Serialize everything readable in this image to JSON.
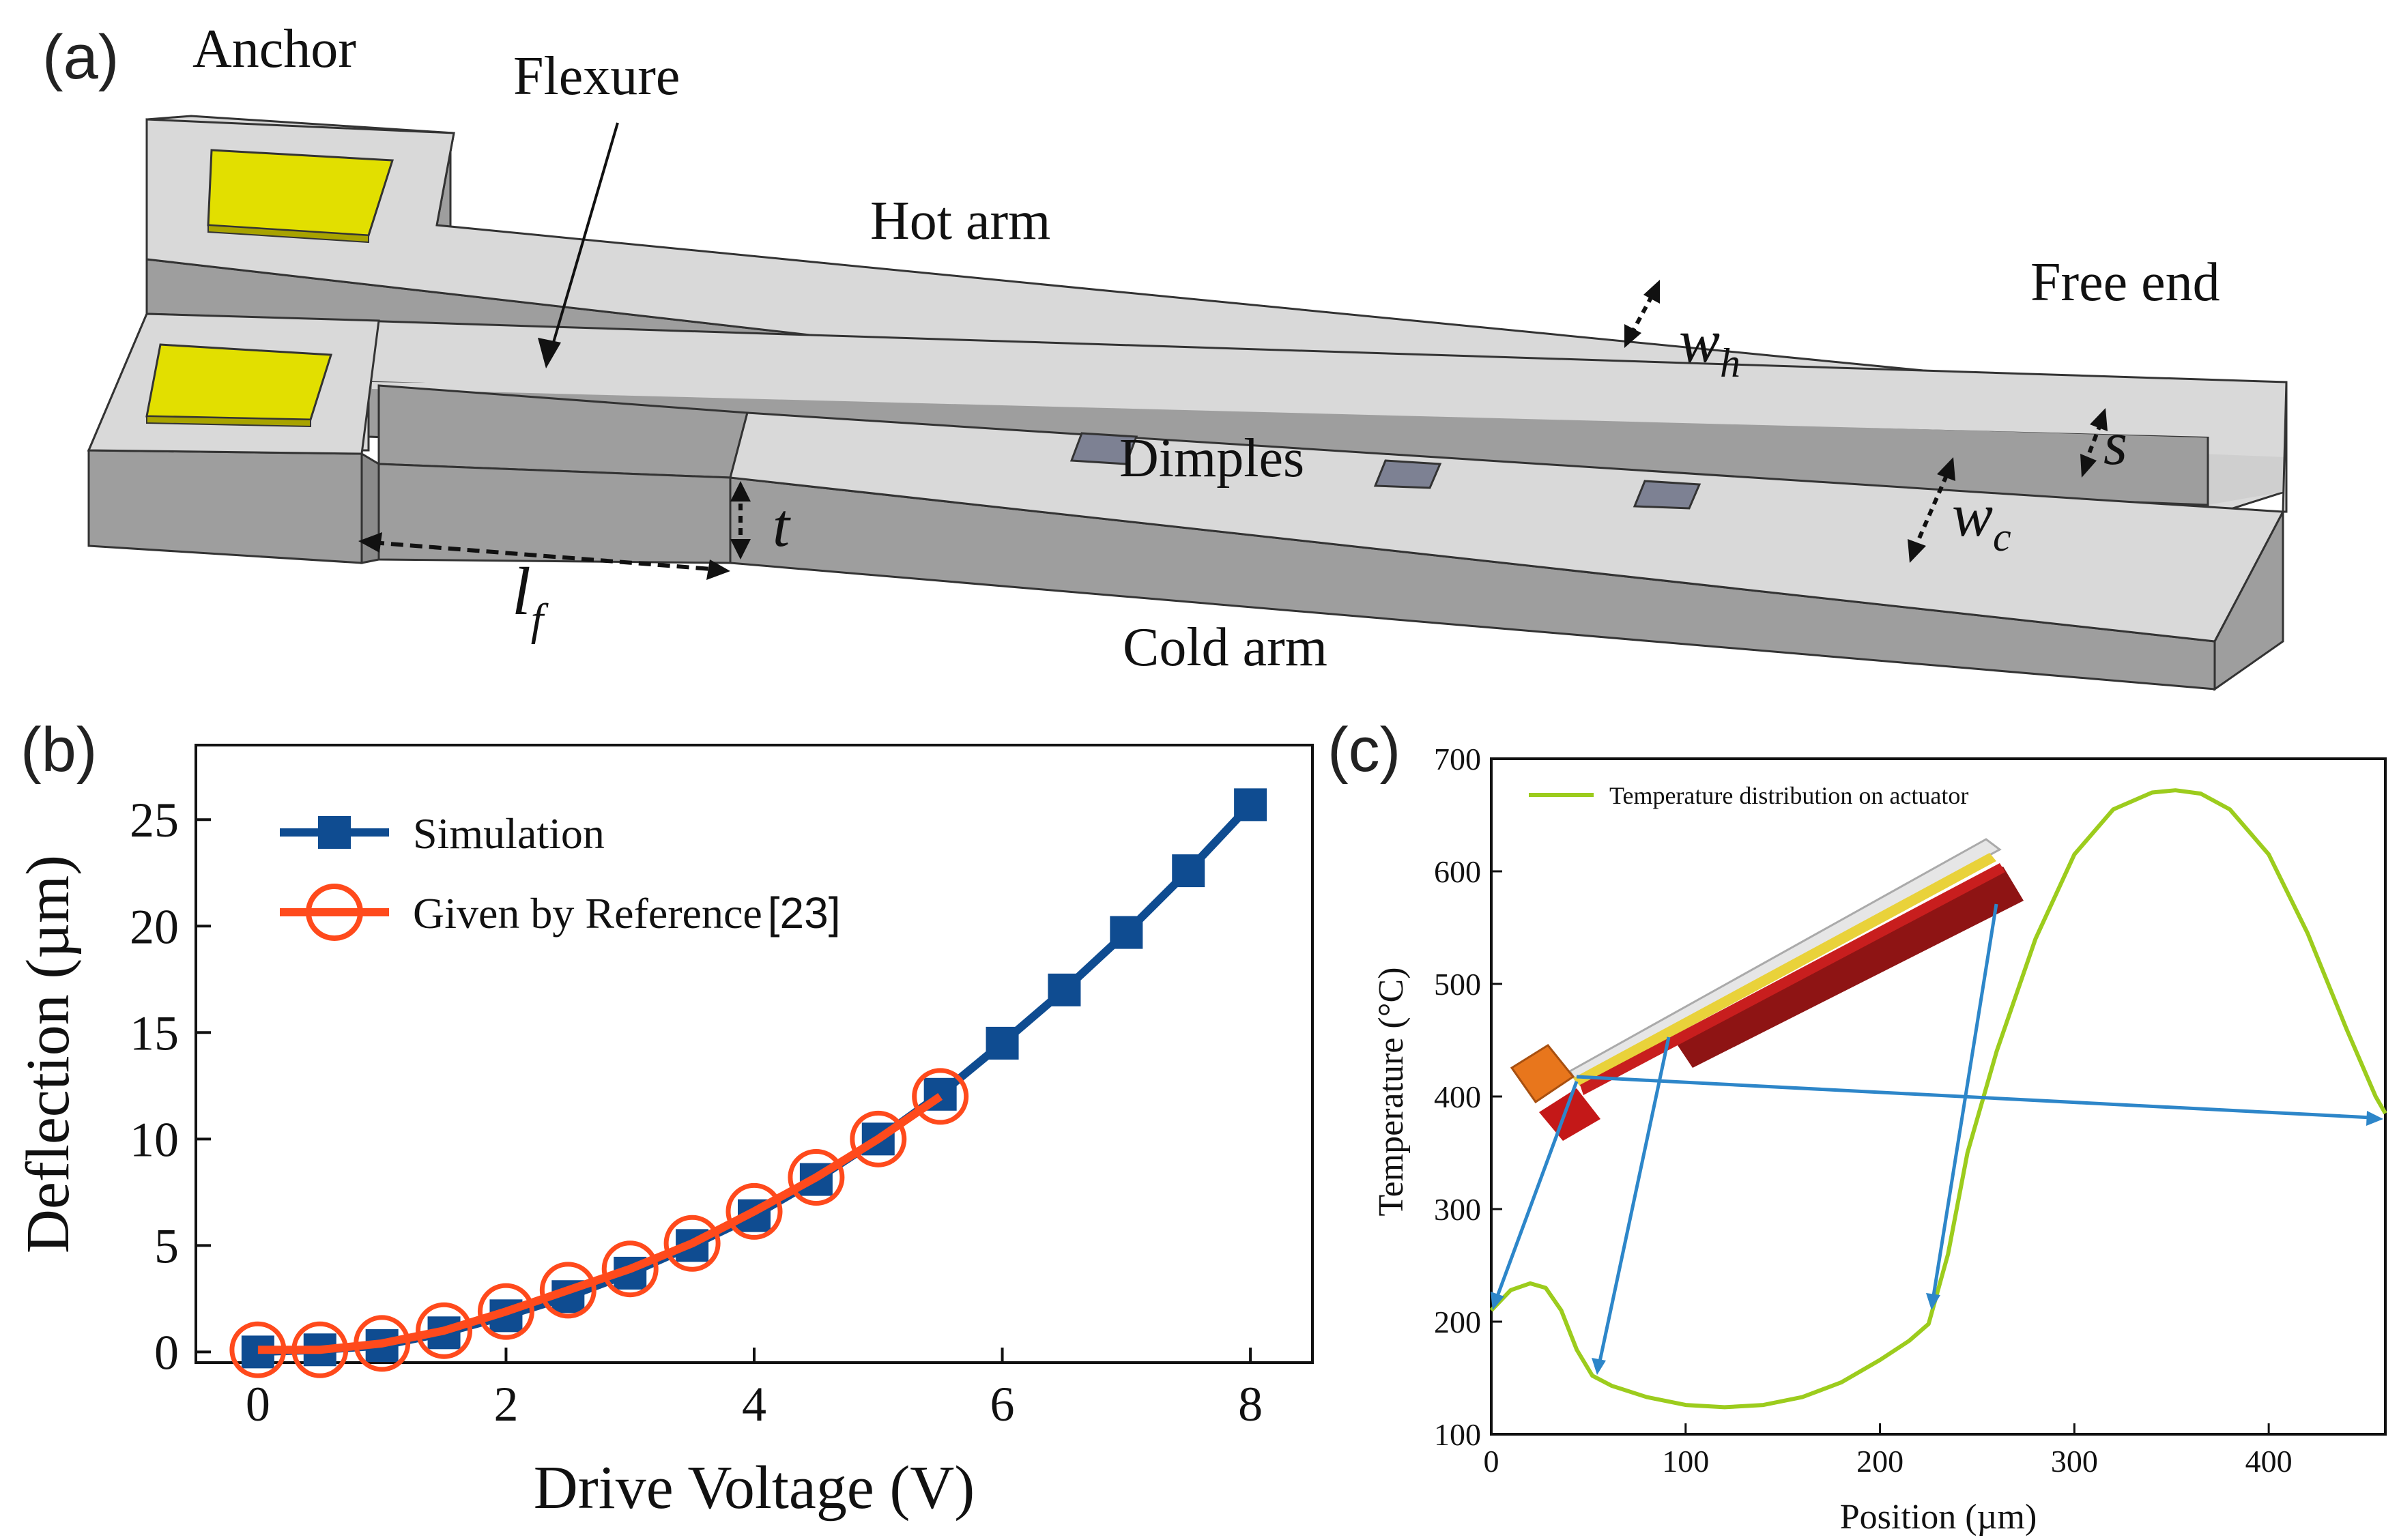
{
  "panel_a": {
    "panel_label": "(a)",
    "labels": {
      "anchor": "Anchor",
      "flexure": "Flexure",
      "hot_arm": "Hot arm",
      "free_end": "Free end",
      "dimples": "Dimples",
      "cold_arm": "Cold arm"
    },
    "symbols": {
      "wh_base": "w",
      "wh_sub": "h",
      "wc_base": "w",
      "wc_sub": "c",
      "s": "s",
      "t": "t",
      "lf_base": "l",
      "lf_sub": "f"
    },
    "colors": {
      "top": "#d9d9d9",
      "side": "#9e9e9e",
      "pad": "#e2df00",
      "edge": "#333333",
      "dimple": "#7d8193"
    }
  },
  "panel_b": {
    "panel_label": "(b)"
  },
  "panel_c": {
    "panel_label": "(c)"
  },
  "chart_data": [
    {
      "type": "line",
      "xlabel": "Drive Voltage (V)",
      "ylabel": "Deflection (µm)",
      "xlim": [
        -0.5,
        8.5
      ],
      "ylim": [
        -0.5,
        28.5
      ],
      "xticks": [
        0,
        2,
        4,
        6,
        8
      ],
      "yticks": [
        0,
        5,
        10,
        15,
        20,
        25
      ],
      "legend_position": "top-left",
      "series": [
        {
          "name": "Simulation",
          "color": "#0f4c91",
          "marker": "square",
          "x": [
            0,
            0.5,
            1,
            1.5,
            2,
            2.5,
            3,
            3.5,
            4,
            4.5,
            5,
            5.5,
            6,
            6.5,
            7,
            7.5,
            8
          ],
          "y": [
            0,
            0.1,
            0.3,
            0.9,
            1.7,
            2.6,
            3.7,
            5.0,
            6.4,
            8.1,
            10.0,
            12.1,
            14.5,
            17.0,
            19.7,
            22.6,
            25.7
          ]
        },
        {
          "name": "Given by Reference",
          "name_suffix": "[23]",
          "color": "#ff4a1c",
          "marker": "open-circle",
          "x": [
            0,
            0.5,
            1,
            1.5,
            2,
            2.5,
            3,
            3.5,
            4,
            4.5,
            5,
            5.5
          ],
          "y": [
            0.1,
            0.1,
            0.4,
            1.0,
            1.9,
            2.9,
            3.9,
            5.1,
            6.6,
            8.2,
            10.0,
            12.0
          ]
        }
      ]
    },
    {
      "type": "line",
      "xlabel": "Position (µm)",
      "ylabel": "Temperature (°C)",
      "xlim": [
        0,
        460
      ],
      "ylim": [
        100,
        700
      ],
      "xticks": [
        0,
        100,
        200,
        300,
        400
      ],
      "yticks": [
        100,
        200,
        300,
        400,
        500,
        600,
        700
      ],
      "legend_position": "top-left",
      "series": [
        {
          "name": "Temperature distribution on actuator",
          "color": "#9ccc1d",
          "x": [
            0,
            10,
            20,
            28,
            36,
            44,
            52,
            62,
            80,
            100,
            120,
            140,
            160,
            180,
            200,
            215,
            225,
            235,
            245,
            260,
            280,
            300,
            320,
            340,
            352,
            365,
            380,
            400,
            420,
            440,
            455,
            460
          ],
          "y": [
            210,
            228,
            234,
            230,
            210,
            175,
            152,
            143,
            133,
            126,
            124,
            126,
            133,
            146,
            166,
            183,
            198,
            260,
            350,
            440,
            540,
            615,
            655,
            670,
            672,
            669,
            655,
            615,
            545,
            460,
            400,
            385
          ]
        }
      ]
    }
  ]
}
